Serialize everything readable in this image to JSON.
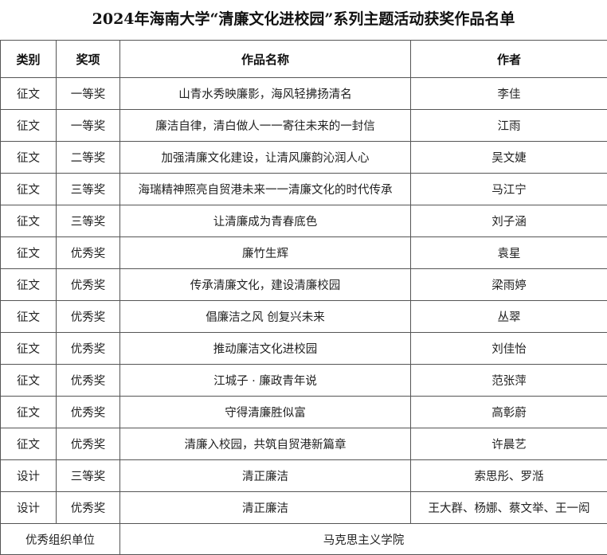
{
  "title": "2024年海南大学“清廉文化进校园”系列主题活动获奖作品名单",
  "headers": [
    "类别",
    "奖项",
    "作品名称",
    "作者"
  ],
  "rows": [
    [
      "征文",
      "一等奖",
      "山青水秀映廉影，海风轻拂扬清名",
      "李佳"
    ],
    [
      "征文",
      "一等奖",
      "廉洁自律，清白做人一一寄往未来的一封信",
      "江雨"
    ],
    [
      "征文",
      "二等奖",
      "加强清廉文化建设，让清风廉韵沁润人心",
      "吴文婕"
    ],
    [
      "征文",
      "三等奖",
      "海瑞精神照亮自贸港未来一一清廉文化的时代传承",
      "马江宁"
    ],
    [
      "征文",
      "三等奖",
      "让清廉成为青春底色",
      "刘子涵"
    ],
    [
      "征文",
      "优秀奖",
      "廉竹生辉",
      "袁星"
    ],
    [
      "征文",
      "优秀奖",
      "传承清廉文化，建设清廉校园",
      "梁雨婷"
    ],
    [
      "征文",
      "优秀奖",
      "倡廉洁之风 创复兴未来",
      "丛翠"
    ],
    [
      "征文",
      "优秀奖",
      "推动廉洁文化进校园",
      "刘佳怡"
    ],
    [
      "征文",
      "优秀奖",
      "江城子 · 廉政青年说",
      "范张萍"
    ],
    [
      "征文",
      "优秀奖",
      "守得清廉胜似富",
      "高彰蔚"
    ],
    [
      "征文",
      "优秀奖",
      "清廉入校园，共筑自贸港新篇章",
      "许晨艺"
    ],
    [
      "设计",
      "三等奖",
      "清正廉洁",
      "索思彤、罗湉"
    ],
    [
      "设计",
      "优秀奖",
      "清正廉洁",
      "王大群、杨娜、蔡文举、王一闳"
    ]
  ],
  "footer": {
    "label": "优秀组织单位",
    "value": "马克思主义学院"
  }
}
